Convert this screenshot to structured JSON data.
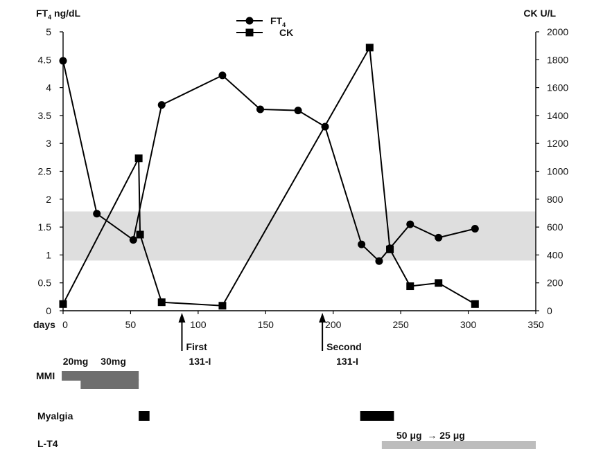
{
  "chart_data": {
    "type": "line",
    "y_left_label": "FT",
    "y_left_label_sub": "4",
    "y_left_label_unit": "ng/dL",
    "y_right_label": "CK U/L",
    "x_label": "days",
    "xlim": [
      0,
      350
    ],
    "x_ticks": [
      0,
      50,
      100,
      150,
      200,
      250,
      300,
      350
    ],
    "ylim_left": [
      0,
      5
    ],
    "y_left_ticks": [
      0,
      0.5,
      1,
      1.5,
      2,
      2.5,
      3,
      3.5,
      4,
      4.5,
      5
    ],
    "ylim_right": [
      0,
      2000
    ],
    "y_right_ticks": [
      0,
      200,
      400,
      600,
      800,
      1000,
      1200,
      1400,
      1600,
      1800,
      2000
    ],
    "reference_band": {
      "axis": "left",
      "from": 0.9,
      "to": 1.78,
      "color": "#dedede"
    },
    "series": [
      {
        "name": "FT",
        "name_sub": "4",
        "marker": "circle",
        "axis": "left",
        "x": [
          0,
          25,
          52,
          73,
          118,
          146,
          174,
          194,
          221,
          234,
          242,
          257,
          278,
          305
        ],
        "y": [
          4.48,
          1.74,
          1.27,
          3.69,
          4.22,
          3.61,
          3.59,
          3.3,
          1.19,
          0.89,
          1.12,
          1.55,
          1.31,
          1.47
        ]
      },
      {
        "name": "CK",
        "marker": "square",
        "axis": "right",
        "x": [
          0,
          56,
          57,
          73,
          118,
          227,
          242,
          257,
          278,
          305
        ],
        "y": [
          48,
          1093,
          546,
          61,
          36,
          1887,
          440,
          176,
          199,
          48
        ]
      }
    ],
    "annotations": [
      {
        "x": 88,
        "line1": "First",
        "line2": "131-I"
      },
      {
        "x": 192,
        "line1": "Second",
        "line2": "131-I"
      }
    ]
  },
  "treatments": {
    "mmi": {
      "label": "MMI",
      "dose_labels": [
        {
          "text": "20mg",
          "x": 5
        },
        {
          "text": "30mg",
          "x": 33
        }
      ],
      "bars": [
        {
          "from": -1,
          "to": 56,
          "level": "upper",
          "color": "#6e6e6e"
        },
        {
          "from": 13,
          "to": 56,
          "level": "lower",
          "color": "#6e6e6e"
        }
      ]
    },
    "myalgia": {
      "label": "Myalgia",
      "bars": [
        {
          "from": 56,
          "to": 64,
          "color": "#000000"
        },
        {
          "from": 220,
          "to": 245,
          "color": "#000000"
        }
      ]
    },
    "lt4": {
      "label": "L-T4",
      "dose_label": "50 μg  → 25 μg",
      "bars": [
        {
          "from": 236,
          "to": 350,
          "color": "#bdbdbd"
        }
      ]
    }
  }
}
